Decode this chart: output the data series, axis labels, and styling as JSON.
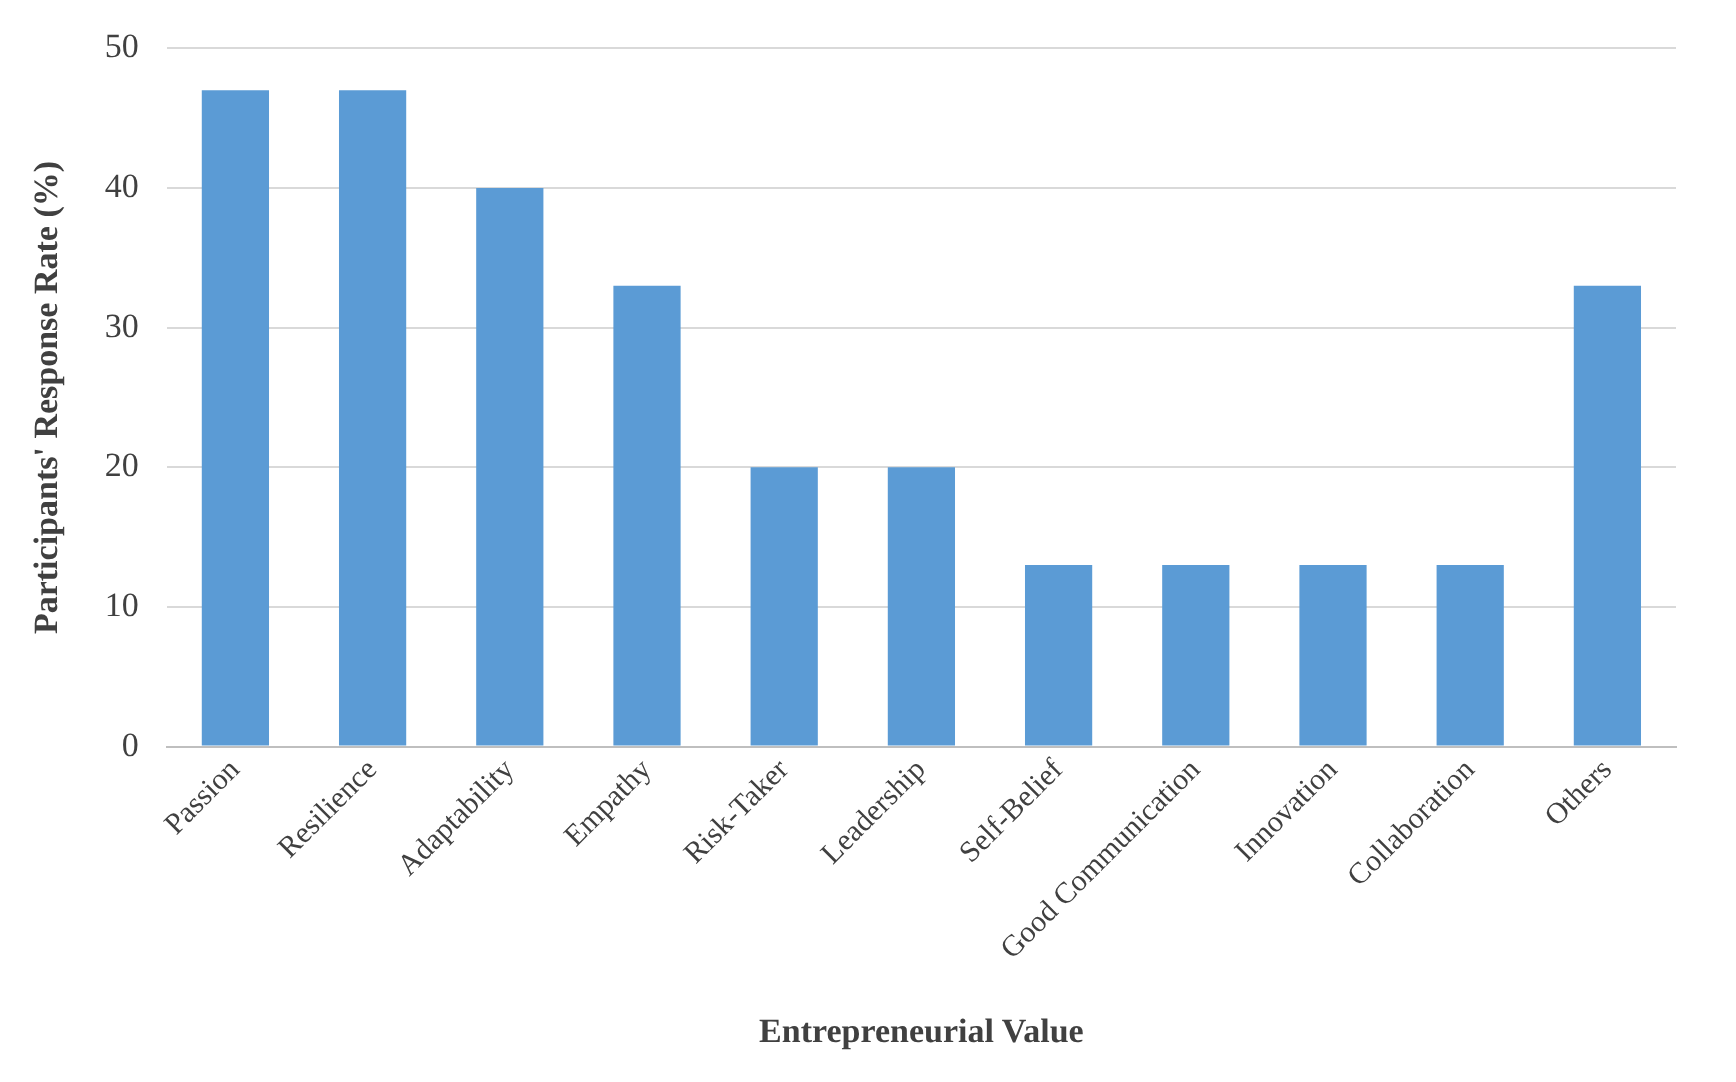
{
  "chart_data": {
    "type": "bar",
    "xlabel": "Entrepreneurial Value",
    "ylabel": "Participants' Response Rate (%)",
    "categories": [
      "Passion",
      "Resilience",
      "Adaptability",
      "Empathy",
      "Risk-Taker",
      "Leadership",
      "Self-Belief",
      "Good Communication",
      "Innovation",
      "Collaboration",
      "Others"
    ],
    "values": [
      47,
      47,
      40,
      33,
      20,
      20,
      13,
      13,
      13,
      13,
      33
    ],
    "color": "#5b9bd5",
    "ylim": [
      0,
      50
    ],
    "yticks": [
      0,
      10,
      20,
      30,
      40,
      50
    ],
    "grid": "y",
    "legend": false
  }
}
